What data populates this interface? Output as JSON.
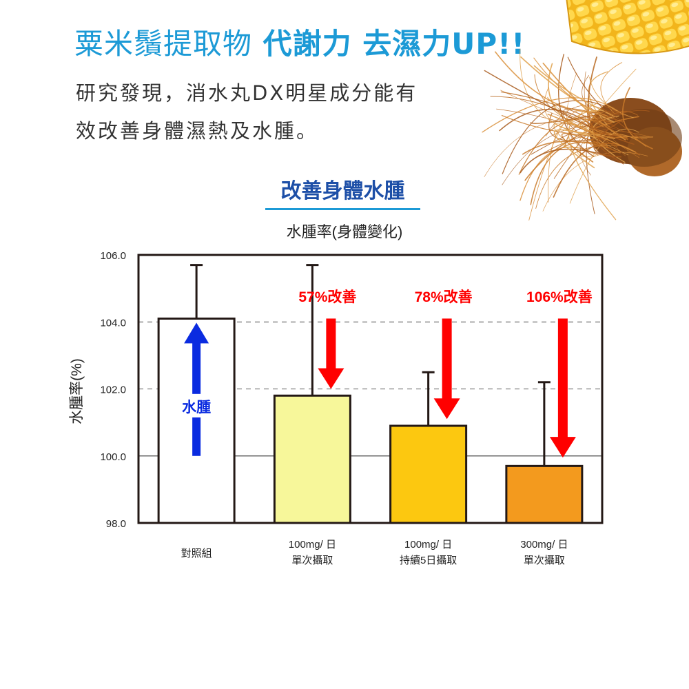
{
  "header": {
    "headline_light": "粟米鬚提取物",
    "headline_strong": "代謝力 去濕力UP!!",
    "intro_line1": "研究發現，消水丸DX明星成分能有",
    "intro_line2": "效改善身體濕熱及水腫。",
    "subtitle": "改善身體水腫"
  },
  "colors": {
    "brand_blue": "#1c9ad6",
    "subtitle_blue": "#1d4fa7",
    "arrow_red": "#ff0000",
    "arrow_blue": "#0a2be0"
  },
  "chart_data": {
    "type": "bar",
    "title": "水腫率(身體變化)",
    "ylabel": "水腫率(%)",
    "xlabel": "",
    "ylim": [
      98,
      106
    ],
    "yticks": [
      "106.0",
      "104.0",
      "102.0",
      "100.0",
      "98.0"
    ],
    "baseline": 100,
    "dashed_gridlines": [
      102,
      104
    ],
    "categories": [
      [
        "對照組"
      ],
      [
        "100mg/ 日",
        "單次攝取"
      ],
      [
        "100mg/ 日",
        "持續5日攝取"
      ],
      [
        "300mg/ 日",
        "單次攝取"
      ]
    ],
    "values": [
      104.1,
      101.8,
      100.9,
      99.7
    ],
    "error_upper": [
      105.7,
      105.7,
      102.5,
      102.2
    ],
    "bar_colors": [
      "#ffffff",
      "#f7f79a",
      "#fcc810",
      "#f39a1e"
    ],
    "annotations": [
      {
        "text": "水腫",
        "direction": "up",
        "color": "#0a2be0"
      },
      {
        "text": "57%改善",
        "direction": "down",
        "color": "#ff0000"
      },
      {
        "text": "78%改善",
        "direction": "down",
        "color": "#ff0000"
      },
      {
        "text": "106%改善",
        "direction": "down",
        "color": "#ff0000"
      }
    ]
  }
}
